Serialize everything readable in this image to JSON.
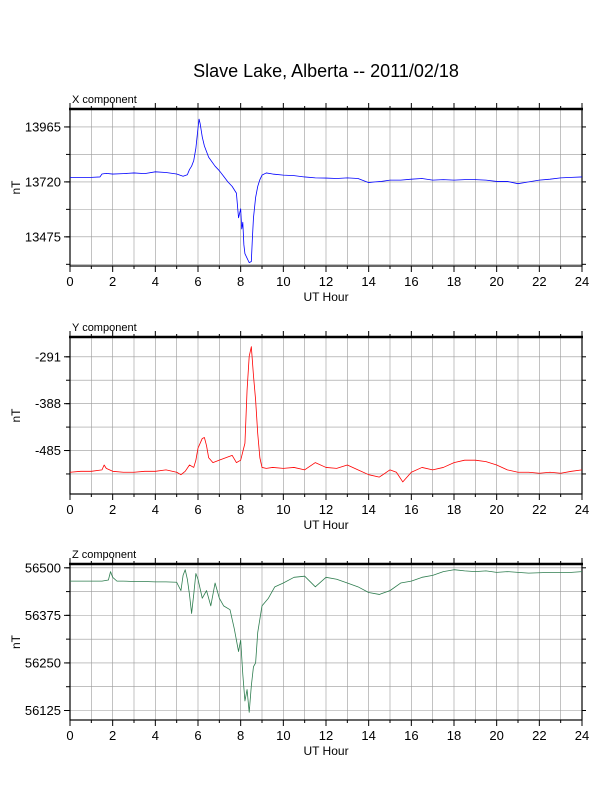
{
  "figure": {
    "title": "Slave Lake, Alberta -- 2011/02/18"
  },
  "chart_data": [
    {
      "type": "line",
      "title": "X component",
      "xlabel": "UT Hour",
      "ylabel": "nT",
      "xlim": [
        0,
        24
      ],
      "ylim": [
        13345,
        14045
      ],
      "xticks": [
        0,
        2,
        4,
        6,
        8,
        10,
        12,
        14,
        16,
        18,
        20,
        22,
        24
      ],
      "yticks": [
        13475,
        13720,
        13965
      ],
      "grid": true,
      "color": "#0000ff",
      "series": [
        {
          "x": [
            0,
            0.5,
            1,
            1.4,
            1.5,
            1.7,
            2,
            2.5,
            3,
            3.5,
            4,
            4.5,
            5,
            5.3,
            5.5,
            5.6,
            5.7,
            5.8,
            5.9,
            6.0,
            6.05,
            6.1,
            6.2,
            6.3,
            6.5,
            6.8,
            7.0,
            7.2,
            7.4,
            7.6,
            7.8,
            7.9,
            8.0,
            8.05,
            8.1,
            8.15,
            8.2,
            8.3,
            8.4,
            8.5,
            8.55,
            8.6,
            8.7,
            8.8,
            8.9,
            9.0,
            9.2,
            9.5,
            10,
            10.5,
            11,
            11.5,
            12,
            12.5,
            13,
            13.5,
            14,
            14.3,
            14.6,
            15,
            15.5,
            16,
            16.5,
            17,
            17.5,
            18,
            18.5,
            19,
            19.5,
            20,
            20.5,
            21,
            21.5,
            22,
            22.5,
            23,
            23.5,
            24
          ],
          "y": [
            13740,
            13740,
            13740,
            13742,
            13755,
            13758,
            13755,
            13757,
            13760,
            13757,
            13765,
            13762,
            13755,
            13745,
            13752,
            13775,
            13790,
            13815,
            13870,
            13960,
            14000,
            13980,
            13920,
            13880,
            13830,
            13790,
            13770,
            13745,
            13720,
            13700,
            13670,
            13560,
            13600,
            13510,
            13540,
            13440,
            13400,
            13380,
            13360,
            13365,
            13470,
            13560,
            13650,
            13700,
            13730,
            13750,
            13760,
            13755,
            13750,
            13748,
            13742,
            13738,
            13737,
            13735,
            13738,
            13735,
            13717,
            13720,
            13722,
            13728,
            13728,
            13732,
            13735,
            13728,
            13730,
            13728,
            13730,
            13730,
            13728,
            13722,
            13722,
            13712,
            13720,
            13728,
            13732,
            13738,
            13740,
            13742
          ]
        }
      ]
    },
    {
      "type": "line",
      "title": "Y component",
      "xlabel": "UT Hour",
      "ylabel": "nT",
      "xlim": [
        0,
        24
      ],
      "ylim": [
        -575,
        -250
      ],
      "xticks": [
        0,
        2,
        4,
        6,
        8,
        10,
        12,
        14,
        16,
        18,
        20,
        22,
        24
      ],
      "yticks": [
        -485,
        -388,
        -291
      ],
      "grid": true,
      "color": "#ff0000",
      "series": [
        {
          "x": [
            0,
            0.5,
            1,
            1.5,
            1.6,
            1.7,
            2,
            2.5,
            3,
            3.5,
            4,
            4.5,
            5,
            5.2,
            5.4,
            5.6,
            5.8,
            5.9,
            6.0,
            6.1,
            6.2,
            6.3,
            6.4,
            6.5,
            6.7,
            7.0,
            7.3,
            7.6,
            7.8,
            8.0,
            8.2,
            8.3,
            8.4,
            8.5,
            8.55,
            8.6,
            8.7,
            8.8,
            8.9,
            9.0,
            9.2,
            9.5,
            10,
            10.5,
            11,
            11.5,
            12,
            12.5,
            13,
            13.5,
            14,
            14.5,
            15,
            15.3,
            15.6,
            16,
            16.5,
            17,
            17.5,
            18,
            18.5,
            19,
            19.5,
            20,
            20.5,
            21,
            21.5,
            22,
            22.5,
            23,
            23.5,
            24
          ],
          "y": [
            -530,
            -528,
            -528,
            -525,
            -515,
            -522,
            -528,
            -530,
            -530,
            -528,
            -528,
            -525,
            -530,
            -535,
            -528,
            -515,
            -520,
            -505,
            -480,
            -470,
            -460,
            -458,
            -475,
            -500,
            -510,
            -505,
            -500,
            -495,
            -510,
            -505,
            -470,
            -360,
            -290,
            -270,
            -300,
            -330,
            -380,
            -450,
            -500,
            -520,
            -522,
            -520,
            -522,
            -520,
            -525,
            -510,
            -520,
            -522,
            -515,
            -525,
            -535,
            -540,
            -525,
            -530,
            -550,
            -530,
            -520,
            -525,
            -520,
            -510,
            -505,
            -505,
            -508,
            -515,
            -525,
            -530,
            -530,
            -532,
            -530,
            -532,
            -528,
            -525
          ]
        }
      ]
    },
    {
      "type": "line",
      "title": "Z component",
      "xlabel": "UT Hour",
      "ylabel": "nT",
      "xlim": [
        0,
        24
      ],
      "ylim": [
        56100,
        56510
      ],
      "xticks": [
        0,
        2,
        4,
        6,
        8,
        10,
        12,
        14,
        16,
        18,
        20,
        22,
        24
      ],
      "yticks": [
        56125,
        56250,
        56375,
        56500
      ],
      "grid": true,
      "color": "#2e7d4f",
      "series": [
        {
          "x": [
            0,
            0.5,
            1,
            1.5,
            1.8,
            1.9,
            2.0,
            2.2,
            2.5,
            3,
            3.5,
            4,
            4.5,
            5,
            5.2,
            5.3,
            5.4,
            5.5,
            5.6,
            5.7,
            5.8,
            5.9,
            6.0,
            6.2,
            6.4,
            6.6,
            6.8,
            7.0,
            7.2,
            7.5,
            7.7,
            7.9,
            8.0,
            8.1,
            8.2,
            8.3,
            8.4,
            8.5,
            8.6,
            8.7,
            8.8,
            9.0,
            9.3,
            9.6,
            10,
            10.5,
            11,
            11.5,
            12,
            12.5,
            13,
            13.5,
            14,
            14.5,
            15,
            15.5,
            16,
            16.5,
            17,
            17.5,
            18,
            18.5,
            19,
            19.5,
            20,
            20.5,
            21,
            21.5,
            22,
            22.5,
            23,
            23.5,
            24
          ],
          "y": [
            56465,
            56465,
            56465,
            56465,
            56468,
            56490,
            56475,
            56465,
            56465,
            56464,
            56464,
            56463,
            56463,
            56462,
            56440,
            56480,
            56495,
            56470,
            56430,
            56380,
            56430,
            56485,
            56470,
            56420,
            56440,
            56400,
            56460,
            56420,
            56400,
            56390,
            56340,
            56280,
            56310,
            56220,
            56150,
            56180,
            56120,
            56190,
            56240,
            56250,
            56330,
            56400,
            56420,
            56450,
            56460,
            56475,
            56478,
            56450,
            56475,
            56470,
            56460,
            56450,
            56435,
            56430,
            56440,
            56460,
            56465,
            56475,
            56480,
            56490,
            56495,
            56492,
            56490,
            56492,
            56488,
            56490,
            56488,
            56486,
            56487,
            56488,
            56488,
            56488,
            56490
          ]
        }
      ]
    }
  ]
}
